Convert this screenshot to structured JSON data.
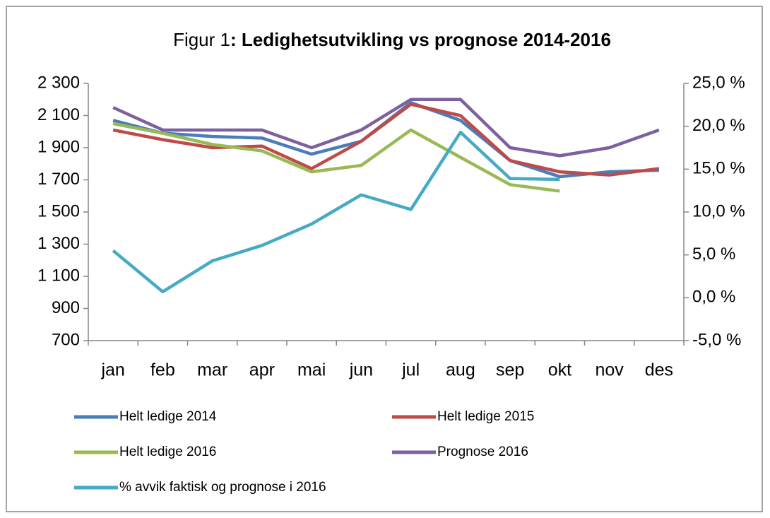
{
  "chart_data": {
    "type": "line",
    "title": [
      "Figur 1",
      ": Ledighetsutvikling vs prognose 2014-2016"
    ],
    "categories": [
      "jan",
      "feb",
      "mar",
      "apr",
      "mai",
      "jun",
      "jul",
      "aug",
      "sep",
      "okt",
      "nov",
      "des"
    ],
    "series": [
      {
        "name": "Helt ledige 2014",
        "color": "#4a7ebb",
        "values": [
          2070,
          1990,
          1970,
          1960,
          1860,
          1940,
          2180,
          2070,
          1820,
          1720,
          1750,
          1760
        ]
      },
      {
        "name": "Helt ledige 2015",
        "color": "#be4b48",
        "values": [
          2010,
          1950,
          1900,
          1910,
          1770,
          1940,
          2170,
          2100,
          1820,
          1750,
          1730,
          1770
        ]
      },
      {
        "name": "Helt ledige 2016",
        "color": "#98b954",
        "values": [
          2050,
          1990,
          1920,
          1880,
          1750,
          1790,
          2010,
          1840,
          1670,
          1630,
          null,
          null
        ]
      },
      {
        "name": "Prognose 2016",
        "color": "#7d60a0",
        "values": [
          2150,
          2010,
          2010,
          2010,
          1900,
          2010,
          2200,
          2200,
          1900,
          1850,
          1900,
          2010
        ]
      },
      {
        "name": "% avvik faktisk og prognose i 2016",
        "color": "#46aac5",
        "axis": "y2",
        "values": [
          5.5,
          0.7,
          4.3,
          6.1,
          8.6,
          12.0,
          10.3,
          19.3,
          13.9,
          13.8,
          null,
          null
        ]
      }
    ],
    "ylim": [
      700,
      2300
    ],
    "yticks": [
      700,
      900,
      {
        "value": 1100,
        "label": "1 100"
      },
      {
        "value": 1300,
        "label": "1 300"
      },
      {
        "value": 1500,
        "label": "1 500"
      },
      {
        "value": 1700,
        "label": "1 700"
      },
      {
        "value": 1900,
        "label": "1 900"
      },
      {
        "value": 2100,
        "label": "2 100"
      },
      {
        "value": 2300,
        "label": "2 300"
      }
    ],
    "y2lim": [
      -5,
      25
    ],
    "y2ticks": [
      {
        "value": -5,
        "label": "-5,0 %"
      },
      {
        "value": 0,
        "label": "0,0 %"
      },
      {
        "value": 5,
        "label": "5,0 %"
      },
      {
        "value": 10,
        "label": "10,0 %"
      },
      {
        "value": 15,
        "label": "15,0 %"
      },
      {
        "value": 20,
        "label": "20,0 %"
      },
      {
        "value": 25,
        "label": "25,0 %"
      }
    ],
    "grid": false
  }
}
